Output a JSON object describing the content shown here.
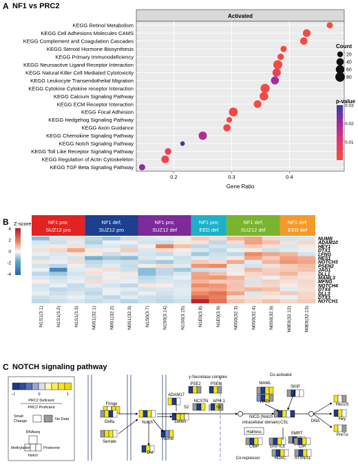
{
  "panelA": {
    "letter": "A",
    "title": "NF1 vs PRC2",
    "facet": "Activated",
    "xlabel": "Gene Ratio",
    "size_legend_title": "Count",
    "color_legend_title": "p-value"
  },
  "chart_data": {
    "type": "scatter",
    "xlabel": "Gene Ratio",
    "xticks": [
      0.2,
      0.3,
      0.4
    ],
    "xlim": [
      0.135,
      0.495
    ],
    "size_legend": {
      "title": "Count",
      "values": [
        20,
        40,
        60,
        80
      ]
    },
    "color_legend": {
      "title": "p-value",
      "ticks": [
        0.01,
        0.02,
        0.03
      ],
      "range": [
        0.0,
        0.03
      ],
      "low_color": "#f44f3a",
      "high_color": "#4040a0"
    },
    "pathways": [
      "KEGG Retinol Metabolism",
      "KEGG Cell Adhesions Molecules CAMS",
      "KEGG Complement and Coagulation Cascades",
      "KEGG Steroid Hormone Biosynthesis",
      "KEGG Primary Immunodeficiency",
      "KEGG Neuroactive Ligand Receptor Interaction",
      "KEGG Natural Killer Cell Mediated Cytotoxicity",
      "KEGG Leukocyte Transendothelial Migration",
      "KEGG Cytokine Cytokine receptor Interaction",
      "KEGG Calcium Signaling Pathway",
      "KEGG ECM Receptor Interaction",
      "KEGG Focal Adhesion",
      "KEGG Hedgehog Signaling Pathway",
      "KEGG Axon Guidance",
      "KEGG Chemokine Signaling Pathway",
      "KEGG Notch Signaling Pathway",
      "KEGG Toll Like Receptor Signaling Pathway",
      "KEGG Regulation of Actin Cytoskeleton",
      "KEGG TGF Beta Signaling Pathway"
    ],
    "gene_ratio": [
      0.47,
      0.43,
      0.425,
      0.39,
      0.385,
      0.38,
      0.378,
      0.375,
      0.358,
      0.356,
      0.345,
      0.303,
      0.296,
      0.292,
      0.25,
      0.215,
      0.19,
      0.185,
      0.145
    ],
    "count": [
      25,
      45,
      40,
      25,
      28,
      70,
      55,
      50,
      70,
      60,
      45,
      65,
      20,
      40,
      55,
      10,
      30,
      45,
      25
    ],
    "p_value": [
      0.001,
      0.001,
      0.002,
      0.002,
      0.002,
      0.001,
      0.006,
      0.02,
      0.002,
      0.003,
      0.002,
      0.003,
      0.002,
      0.003,
      0.018,
      0.03,
      0.005,
      0.004,
      0.022
    ]
  },
  "panelB": {
    "letter": "B",
    "zscore_label": "Z-score",
    "scale_ticks": [
      "4",
      "2",
      "0",
      "-2",
      "-4"
    ],
    "groups": [
      {
        "line1": "NF1 pro;",
        "line2": "SUZ12 pro",
        "color": "#e32222"
      },
      {
        "line1": "NF1 def;",
        "line2": "SUZ12 pro",
        "color": "#1c3f8f"
      },
      {
        "line1": "NF1 pro;",
        "line2": "SUZ12 def",
        "color": "#7d2a9a"
      },
      {
        "line1": "NF1 pro;",
        "line2": "EED def",
        "color": "#1eb0c8"
      },
      {
        "line1": "NF1 def;",
        "line2": "SUZ12 def",
        "color": "#78b42d"
      },
      {
        "line1": "NF1 def;",
        "line2": "EED def",
        "color": "#f39a2a"
      }
    ],
    "samples": [
      "N1S1(3.1)",
      "N1S1(3.2)",
      "N1S1(3.3)",
      "N0S1(32.1)",
      "N0S1(32.2)",
      "N0S1(32.3)",
      "N1S0(3.7)",
      "N1S0(3.14)",
      "N1S0(3.15)",
      "N1E0(3.8)",
      "N1E0(3.9)",
      "N0S0(32.3)",
      "N0S0(32.4)",
      "N0S0(32.9)",
      "N0E0(32.12)",
      "N0E0(32.13)"
    ],
    "genes": [
      "NUMB",
      "ADAM10",
      "HEY1",
      "DTX1",
      "LFNG",
      "HES1",
      "NOTCH3",
      "PSEN2",
      "JAG1",
      "DLL1",
      "MAML3",
      "MFNG",
      "NOTCH4",
      "DTX4",
      "DLL3",
      "DTX3",
      "NOTCH1"
    ],
    "z": [
      [
        -1.5,
        -0.5,
        0.5,
        -0.8,
        -1.2,
        -0.6,
        -0.4,
        -0.3,
        -0.2,
        0.8,
        0.5,
        1.2,
        1.5,
        0.6,
        -0.5,
        -0.4
      ],
      [
        -0.4,
        -0.6,
        -0.3,
        -1.0,
        -0.2,
        0.2,
        -0.5,
        -0.6,
        0.3,
        0.4,
        -0.8,
        0.5,
        1.6,
        1.0,
        0.4,
        0.6
      ],
      [
        -0.3,
        0.3,
        0.4,
        -0.5,
        -0.4,
        -0.6,
        0.2,
        2.2,
        1.0,
        -0.8,
        -0.5,
        -0.6,
        0.8,
        0.4,
        -0.4,
        0.3
      ],
      [
        0.4,
        0.6,
        1.5,
        0.3,
        0.2,
        0.8,
        -0.4,
        0.5,
        0.2,
        -0.4,
        -0.8,
        -0.2,
        0.3,
        -0.6,
        -0.3,
        -0.2
      ],
      [
        -0.2,
        -0.4,
        0.3,
        0.2,
        -0.6,
        -0.3,
        -0.5,
        -0.7,
        -0.3,
        -1.2,
        -0.6,
        -0.8,
        2.0,
        1.5,
        1.2,
        -0.5
      ],
      [
        -0.6,
        -0.3,
        -0.5,
        -1.8,
        -1.2,
        -1.5,
        -0.4,
        -0.2,
        -0.6,
        -0.3,
        -0.5,
        0.3,
        1.5,
        0.8,
        1.6,
        1.4
      ],
      [
        0.3,
        -0.2,
        0.5,
        -0.8,
        -0.5,
        -0.6,
        -0.8,
        -1.2,
        -0.5,
        0.8,
        0.5,
        1.4,
        -0.3,
        1.2,
        1.8,
        1.5
      ],
      [
        -0.5,
        -0.8,
        -0.2,
        -0.6,
        -0.3,
        -0.7,
        0.2,
        0.5,
        -0.3,
        1.8,
        2.0,
        -0.3,
        -0.5,
        0.4,
        0.8,
        1.1
      ],
      [
        -0.2,
        -3.0,
        -0.3,
        0.3,
        0.5,
        -0.6,
        -1.5,
        -0.8,
        -1.2,
        -0.6,
        -0.5,
        0.3,
        1.2,
        0.7,
        0.8,
        1.0
      ],
      [
        -0.8,
        -1.2,
        -0.5,
        0.4,
        -0.2,
        0.3,
        -1.5,
        -0.8,
        -0.4,
        1.5,
        1.0,
        0.2,
        0.6,
        0.8,
        1.2,
        0.5
      ],
      [
        -0.4,
        -0.6,
        -0.3,
        -0.5,
        0.2,
        -0.3,
        -0.8,
        -0.5,
        -0.2,
        1.6,
        1.8,
        1.2,
        0.5,
        -0.2,
        0.6,
        0.4
      ],
      [
        0.2,
        -0.4,
        -0.2,
        0.5,
        -0.3,
        -0.2,
        -0.6,
        -0.4,
        -0.5,
        1.2,
        0.8,
        0.9,
        -0.5,
        0.7,
        0.4,
        0.6
      ],
      [
        -0.5,
        -0.2,
        -0.7,
        -0.3,
        -0.5,
        -0.8,
        0.3,
        0.2,
        -0.4,
        2.0,
        1.8,
        1.0,
        0.5,
        0.6,
        0.2,
        0.5
      ],
      [
        -0.4,
        -0.8,
        -0.6,
        -0.6,
        -0.2,
        -0.3,
        -0.5,
        -0.4,
        -0.3,
        1.4,
        1.6,
        0.9,
        1.2,
        1.0,
        -0.3,
        0.4
      ],
      [
        -0.2,
        -0.6,
        -0.4,
        -0.8,
        -0.2,
        -0.6,
        -0.2,
        -0.5,
        -0.3,
        2.0,
        2.4,
        1.5,
        -0.4,
        0.5,
        0.8,
        0.6
      ],
      [
        -0.6,
        -0.4,
        -0.2,
        -0.5,
        -0.8,
        -0.3,
        -0.6,
        -0.7,
        -0.4,
        2.6,
        2.2,
        0.5,
        0.4,
        0.3,
        -0.2,
        0.6
      ],
      [
        -0.8,
        -0.6,
        -0.4,
        -0.7,
        -0.5,
        -0.9,
        -0.6,
        -0.8,
        -0.6,
        3.8,
        2.4,
        1.0,
        0.6,
        1.0,
        0.6,
        0.8
      ]
    ]
  },
  "panelC": {
    "letter": "C",
    "title": "NOTCH signaling pathway",
    "legend": {
      "scale_min": "−1",
      "scale_zero": "0",
      "scale_max": "1",
      "prc2_def": "PRC2 Deficient",
      "prc2_pro": "PRC2 Proficient",
      "small_change": "Small",
      "small_change2": "Change",
      "no_data": "No Data",
      "rnaseq": "RNAseq",
      "methylation": "Methylation",
      "proteome": "Proteome",
      "notch": "Notch"
    },
    "nodes": {
      "fringe": "Fringe",
      "delta": "Delta",
      "serrate": "Serrate",
      "notch": "Notch",
      "adam17": "ADAM17",
      "s2": "S2",
      "s3": "S3",
      "gamma": "γ-Secretase complex",
      "pse2": "PSE2",
      "psen": "PSEN",
      "ncstn": "NCSTN",
      "aph1": "APH-1",
      "deltex": "Deltex",
      "numb": "Numb",
      "dvl": "Dvl",
      "nicd": "NICD (Notch",
      "nicd2": "intracellular domain)",
      "coactivator": "Co-activator",
      "maml": "MAML",
      "hats": "HATs",
      "skip": "SKIP",
      "csl": "CSL",
      "hairless": "Hairless",
      "smrt": "SMRT",
      "ctbp": "CtBP",
      "gro": "Gro/TLE",
      "cir": "CIR",
      "hdac": "HDAC",
      "atxn": "ATXN/1L",
      "corepressor": "Co-repressor",
      "dna": "DNA",
      "hes": "Hes1/5",
      "hey": "Hey",
      "pretalpha": "PreTα"
    }
  }
}
